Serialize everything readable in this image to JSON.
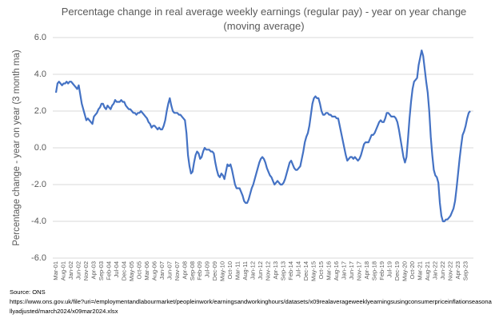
{
  "chart_data": {
    "type": "line",
    "title": "Percentage change in real average weekly earnings (regular pay) - year on year change",
    "subtitle": "(moving average)",
    "y_label": "Percentage change - year on year (3 month ma)",
    "source": "Source:  ONS",
    "source_url": "https://www.ons.gov.uk/file?uri=/employmentandlabourmarket/peopleinwork/earningsandworkinghours/datasets/x09realaverageweeklyearningsusingconsumerpriceinflationseasonallyadjusted/march2024/x09mar2024.xlsx",
    "ylim": [
      -6,
      6
    ],
    "yticks": [
      {
        "value": -6,
        "label": "-6.0"
      },
      {
        "value": -4,
        "label": "-4.0"
      },
      {
        "value": -2,
        "label": "-2.0"
      },
      {
        "value": 0,
        "label": "0.0"
      },
      {
        "value": 2,
        "label": "2.0"
      },
      {
        "value": 4,
        "label": "4.0"
      },
      {
        "value": 6,
        "label": "6.0"
      }
    ],
    "grid": true,
    "categories": [
      "Mar-01",
      null,
      null,
      null,
      null,
      "Aug-01",
      null,
      null,
      null,
      null,
      "Jan-02",
      null,
      null,
      null,
      null,
      "Jun-02",
      null,
      null,
      null,
      null,
      "Nov-02",
      null,
      null,
      null,
      null,
      "Apr-03",
      null,
      null,
      null,
      null,
      "Sep-03",
      null,
      null,
      null,
      null,
      "Feb-04",
      null,
      null,
      null,
      null,
      "Jul-04",
      null,
      null,
      null,
      null,
      "Dec-04",
      null,
      null,
      null,
      null,
      "May-05",
      null,
      null,
      null,
      null,
      "Oct-05",
      null,
      null,
      null,
      null,
      "Mar-06",
      null,
      null,
      null,
      null,
      "Aug-06",
      null,
      null,
      null,
      null,
      "Jan-07",
      null,
      null,
      null,
      null,
      "Jun-07",
      null,
      null,
      null,
      null,
      "Nov-07",
      null,
      null,
      null,
      null,
      "Apr-08",
      null,
      null,
      null,
      null,
      "Sep-08",
      null,
      null,
      null,
      null,
      "Feb-09",
      null,
      null,
      null,
      null,
      "Jul-09",
      null,
      null,
      null,
      null,
      "Dec-09",
      null,
      null,
      null,
      null,
      "May-10",
      null,
      null,
      null,
      null,
      "Oct-10",
      null,
      null,
      null,
      null,
      "Mar-11",
      null,
      null,
      null,
      null,
      "Aug-11",
      null,
      null,
      null,
      null,
      "Jan-12",
      null,
      null,
      null,
      null,
      "Jun-12",
      null,
      null,
      null,
      null,
      "Nov-12",
      null,
      null,
      null,
      null,
      "Apr-13",
      null,
      null,
      null,
      null,
      "Sep-13",
      null,
      null,
      null,
      null,
      "Feb-14",
      null,
      null,
      null,
      null,
      "Jul-14",
      null,
      null,
      null,
      null,
      "Dec-14",
      null,
      null,
      null,
      null,
      "May-15",
      null,
      null,
      null,
      null,
      "Oct-15",
      null,
      null,
      null,
      null,
      "Mar-16",
      null,
      null,
      null,
      null,
      "Aug-16",
      null,
      null,
      null,
      null,
      "Jan-17",
      null,
      null,
      null,
      null,
      "Jun-17",
      null,
      null,
      null,
      null,
      "Nov-17",
      null,
      null,
      null,
      null,
      "Apr-18",
      null,
      null,
      null,
      null,
      "Sep-18",
      null,
      null,
      null,
      null,
      "Feb-19",
      null,
      null,
      null,
      null,
      "Jul-19",
      null,
      null,
      null,
      null,
      "Dec-19",
      null,
      null,
      null,
      null,
      "May-20",
      null,
      null,
      null,
      null,
      "Oct-20",
      null,
      null,
      null,
      null,
      "Mar-21",
      null,
      null,
      null,
      null,
      "Aug-21",
      null,
      null,
      null,
      null,
      "Jan-22",
      null,
      null,
      null,
      null,
      "Jun-22",
      null,
      null,
      null,
      null,
      "Nov-22",
      null,
      null,
      null,
      null,
      "Apr-23",
      null,
      null,
      null,
      null,
      "Sep-23",
      null,
      null,
      null
    ],
    "series": [
      {
        "color": "#4472c4",
        "values": [
          3.0,
          3.5,
          3.6,
          3.5,
          3.4,
          3.5,
          3.5,
          3.6,
          3.5,
          3.6,
          3.6,
          3.5,
          3.4,
          3.3,
          3.2,
          3.4,
          2.9,
          2.4,
          2.1,
          1.8,
          1.5,
          1.6,
          1.5,
          1.4,
          1.3,
          1.7,
          1.8,
          1.9,
          2.1,
          2.2,
          2.4,
          2.4,
          2.2,
          2.1,
          2.3,
          2.2,
          2.1,
          2.3,
          2.4,
          2.6,
          2.5,
          2.5,
          2.5,
          2.6,
          2.5,
          2.5,
          2.3,
          2.2,
          2.1,
          2.1,
          2.0,
          1.9,
          1.9,
          1.8,
          1.9,
          1.9,
          2.0,
          1.9,
          1.8,
          1.7,
          1.6,
          1.4,
          1.3,
          1.1,
          1.2,
          1.2,
          1.1,
          1.0,
          1.1,
          1.0,
          1.0,
          1.2,
          1.5,
          2.0,
          2.4,
          2.7,
          2.3,
          2.0,
          1.9,
          1.9,
          1.9,
          1.8,
          1.8,
          1.7,
          1.6,
          1.5,
          0.8,
          -0.4,
          -1.0,
          -1.4,
          -1.3,
          -0.8,
          -0.4,
          -0.2,
          -0.3,
          -0.6,
          -0.5,
          -0.2,
          0.0,
          -0.1,
          -0.1,
          -0.1,
          -0.2,
          -0.2,
          -0.3,
          -0.8,
          -1.2,
          -1.5,
          -1.6,
          -1.4,
          -1.5,
          -1.7,
          -1.3,
          -0.9,
          -1.0,
          -0.9,
          -1.2,
          -1.6,
          -2.0,
          -2.2,
          -2.2,
          -2.2,
          -2.4,
          -2.6,
          -2.9,
          -3.0,
          -3.0,
          -2.8,
          -2.5,
          -2.2,
          -2.0,
          -1.7,
          -1.4,
          -1.1,
          -0.8,
          -0.6,
          -0.5,
          -0.6,
          -0.8,
          -1.1,
          -1.3,
          -1.5,
          -1.6,
          -1.8,
          -2.0,
          -1.9,
          -1.8,
          -1.9,
          -2.0,
          -2.0,
          -1.9,
          -1.7,
          -1.4,
          -1.1,
          -0.8,
          -0.7,
          -0.9,
          -1.1,
          -1.2,
          -1.2,
          -1.1,
          -1.0,
          -0.6,
          -0.2,
          0.3,
          0.6,
          0.8,
          1.2,
          1.8,
          2.4,
          2.7,
          2.8,
          2.7,
          2.7,
          2.4,
          2.0,
          1.8,
          1.8,
          1.9,
          1.9,
          1.8,
          1.8,
          1.7,
          1.7,
          1.7,
          1.6,
          1.6,
          1.2,
          0.8,
          0.4,
          0.0,
          -0.4,
          -0.7,
          -0.6,
          -0.5,
          -0.5,
          -0.6,
          -0.5,
          -0.6,
          -0.7,
          -0.6,
          -0.4,
          -0.1,
          0.2,
          0.3,
          0.3,
          0.3,
          0.5,
          0.7,
          0.7,
          0.8,
          1.0,
          1.2,
          1.4,
          1.5,
          1.4,
          1.4,
          1.6,
          1.9,
          1.9,
          1.8,
          1.7,
          1.7,
          1.7,
          1.6,
          1.4,
          1.0,
          0.5,
          0.0,
          -0.5,
          -0.8,
          -0.5,
          0.5,
          1.6,
          2.5,
          3.2,
          3.6,
          3.7,
          3.8,
          4.5,
          4.9,
          5.3,
          5.0,
          4.3,
          3.6,
          3.0,
          2.0,
          0.6,
          -0.4,
          -1.2,
          -1.5,
          -1.6,
          -1.9,
          -3.0,
          -3.7,
          -4.0,
          -4.0,
          -3.9,
          -3.9,
          -3.8,
          -3.7,
          -3.5,
          -3.3,
          -2.9,
          -2.2,
          -1.4,
          -0.6,
          0.1,
          0.7,
          0.9,
          1.2,
          1.6,
          1.9,
          2.0
        ]
      }
    ]
  }
}
